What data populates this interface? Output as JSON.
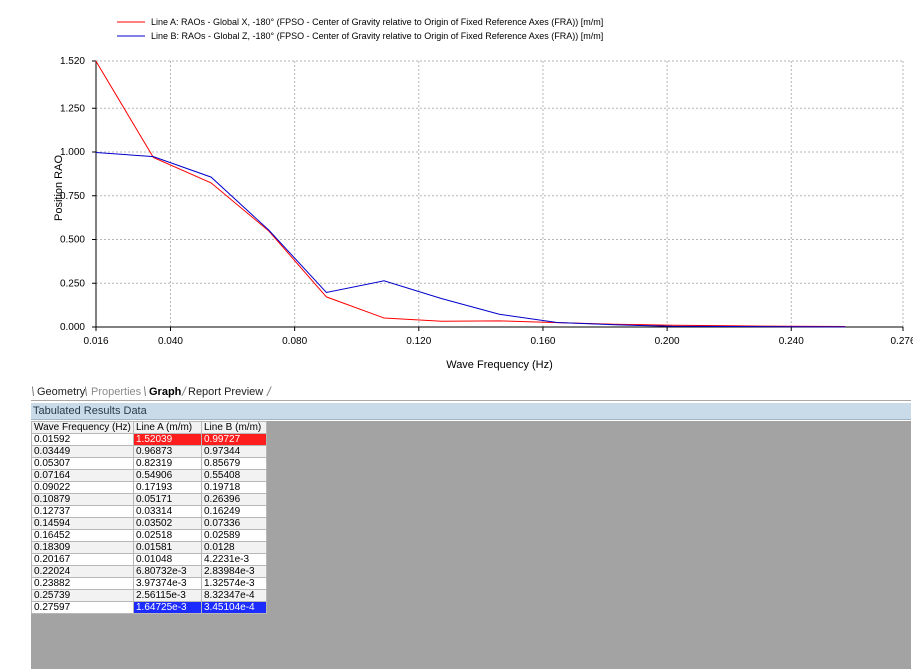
{
  "chart_data": {
    "type": "line",
    "xlabel": "Wave Frequency (Hz)",
    "ylabel": "Position RAO",
    "xlim": [
      0.016,
      0.276
    ],
    "ylim": [
      0,
      1.52
    ],
    "xticks": [
      "0.016",
      "0.040",
      "0.080",
      "0.120",
      "0.160",
      "0.200",
      "0.240",
      "0.276"
    ],
    "xtick_values": [
      0.016,
      0.04,
      0.08,
      0.12,
      0.16,
      0.2,
      0.24,
      0.276
    ],
    "yticks": [
      "0.000",
      "0.250",
      "0.500",
      "0.750",
      "1.000",
      "1.250",
      "1.520"
    ],
    "ytick_values": [
      0,
      0.25,
      0.5,
      0.75,
      1.0,
      1.25,
      1.52
    ],
    "grid": true,
    "legend_position": "top",
    "x": [
      0.01592,
      0.03449,
      0.05307,
      0.07164,
      0.09022,
      0.10879,
      0.12737,
      0.14594,
      0.16452,
      0.18309,
      0.20167,
      0.22024,
      0.23882,
      0.25739
    ],
    "series": [
      {
        "name": "Line A: RAOs - Global X, -180° (FPSO - Center of Gravity relative to Origin of Fixed Reference Axes (FRA)) [m/m]",
        "color": "#ff0000",
        "values": [
          1.52039,
          0.96873,
          0.82319,
          0.54906,
          0.17193,
          0.05171,
          0.03314,
          0.03502,
          0.02518,
          0.01581,
          0.01048,
          0.0068,
          0.004,
          0.0026
        ]
      },
      {
        "name": "Line B: RAOs - Global Z, -180° (FPSO - Center of Gravity relative to Origin of Fixed Reference Axes (FRA)) [m/m]",
        "color": "#0000cc",
        "values": [
          0.99727,
          0.97344,
          0.85679,
          0.55408,
          0.19718,
          0.26396,
          0.16249,
          0.07336,
          0.02589,
          0.0128,
          0.0042,
          0.0028,
          0.0013,
          0.0008
        ]
      }
    ]
  },
  "tabs": [
    {
      "label": "Geometry",
      "state": "normal"
    },
    {
      "label": "Properties",
      "state": "inactive"
    },
    {
      "label": "Graph",
      "state": "active"
    },
    {
      "label": "Report Preview",
      "state": "normal"
    }
  ],
  "panel": {
    "title": "Tabulated Results Data"
  },
  "table": {
    "headers": [
      "Wave Frequency (Hz)",
      "Line A (m/m)",
      "Line B (m/m)"
    ],
    "rows": [
      [
        "0.01592",
        "1.52039",
        "0.99727"
      ],
      [
        "0.03449",
        "0.96873",
        "0.97344"
      ],
      [
        "0.05307",
        "0.82319",
        "0.85679"
      ],
      [
        "0.07164",
        "0.54906",
        "0.55408"
      ],
      [
        "0.09022",
        "0.17193",
        "0.19718"
      ],
      [
        "0.10879",
        "0.05171",
        "0.26396"
      ],
      [
        "0.12737",
        "0.03314",
        "0.16249"
      ],
      [
        "0.14594",
        "0.03502",
        "0.07336"
      ],
      [
        "0.16452",
        "0.02518",
        "0.02589"
      ],
      [
        "0.18309",
        "0.01581",
        "0.0128"
      ],
      [
        "0.20167",
        "0.01048",
        "4.2231e-3"
      ],
      [
        "0.22024",
        "6.80732e-3",
        "2.83984e-3"
      ],
      [
        "0.23882",
        "3.97374e-3",
        "1.32574e-3"
      ],
      [
        "0.25739",
        "2.56115e-3",
        "8.32347e-4"
      ],
      [
        "0.27597",
        "1.64725e-3",
        "3.45104e-4"
      ]
    ],
    "highlight_max_color": "#ff1e1e",
    "highlight_min_color": "#1c2bff"
  }
}
